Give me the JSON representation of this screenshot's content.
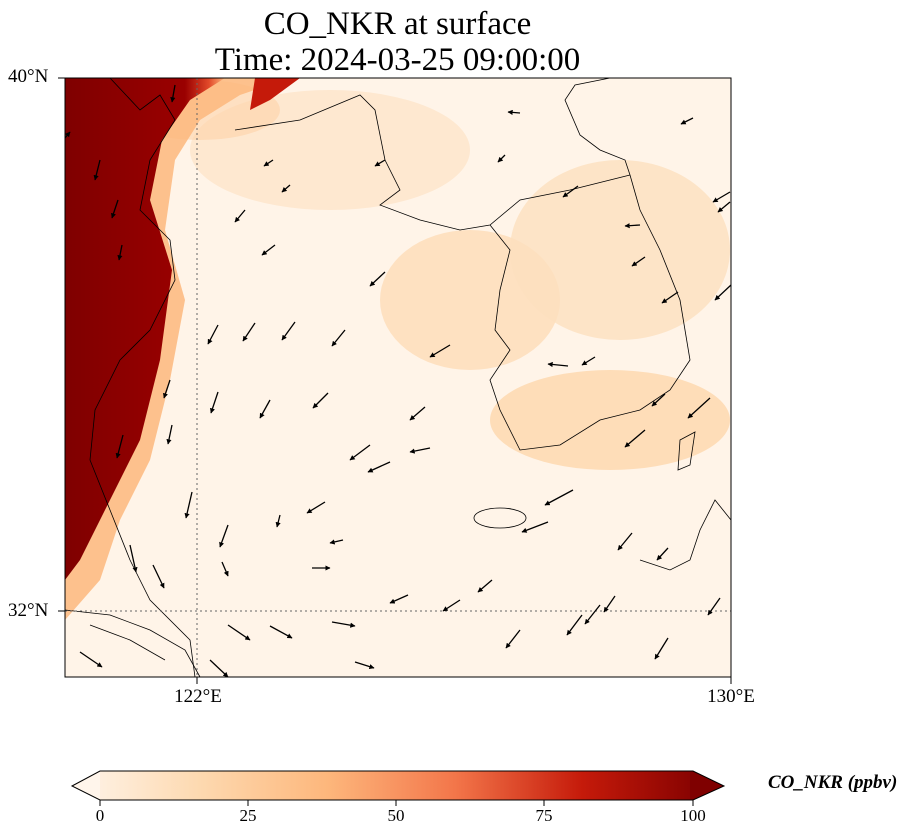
{
  "title_line1": "CO_NKR at surface",
  "title_line2": "Time: 2024-03-25 09:00:00",
  "lat_ticks": [
    "40°N",
    "32°N"
  ],
  "lon_ticks": [
    "122°E",
    "130°E"
  ],
  "colorbar": {
    "label": "CO_NKR (ppbv)",
    "ticks": [
      "0",
      "25",
      "50",
      "75",
      "100"
    ],
    "range": [
      0,
      100
    ],
    "colormap": [
      "#fff5eb",
      "#fdd9b0",
      "#fdb77c",
      "#f3764a",
      "#c51a0a",
      "#7f0000"
    ]
  },
  "map": {
    "extent": {
      "lon": [
        120,
        130
      ],
      "lat": [
        31,
        40
      ]
    },
    "gridlines": {
      "lon": [
        122
      ],
      "lat": [
        32
      ]
    },
    "colors": {
      "plume": "#7f0000",
      "background": "#fff5eb",
      "coast": "#000000"
    }
  }
}
